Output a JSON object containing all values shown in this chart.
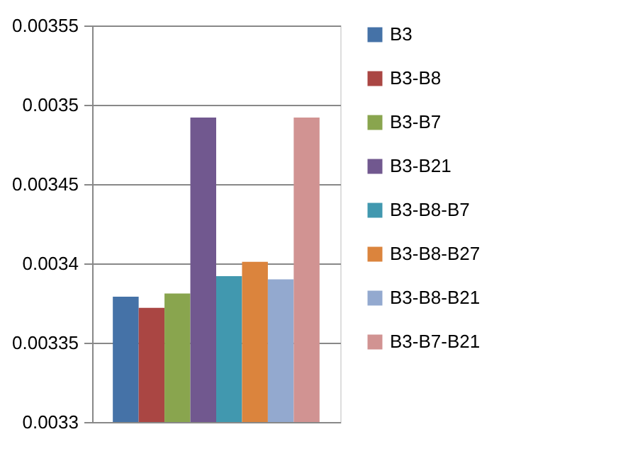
{
  "chart_data": {
    "type": "bar",
    "categories": [
      null
    ],
    "series": [
      {
        "name": "B3",
        "color": "#4572a7",
        "values": [
          0.003379
        ]
      },
      {
        "name": "B3-B8",
        "color": "#aa4643",
        "values": [
          0.003372
        ]
      },
      {
        "name": "B3-B7",
        "color": "#89a54e",
        "values": [
          0.003381
        ]
      },
      {
        "name": "B3-B21",
        "color": "#71588f",
        "values": [
          0.003492
        ]
      },
      {
        "name": "B3-B8-B7",
        "color": "#4198af",
        "values": [
          0.003392
        ]
      },
      {
        "name": "B3-B8-B27",
        "color": "#db843d",
        "values": [
          0.003401
        ]
      },
      {
        "name": "B3-B8-B21",
        "color": "#93a9cf",
        "values": [
          0.00339
        ]
      },
      {
        "name": "B3-B7-B21",
        "color": "#d19392",
        "values": [
          0.003492
        ]
      }
    ],
    "ylim": [
      0.0033,
      0.00355
    ],
    "yticks": [
      0.0033,
      0.00335,
      0.0034,
      0.00345,
      0.0035,
      0.00355
    ],
    "grid": "y",
    "legend": "right",
    "tick_labels": "y"
  }
}
